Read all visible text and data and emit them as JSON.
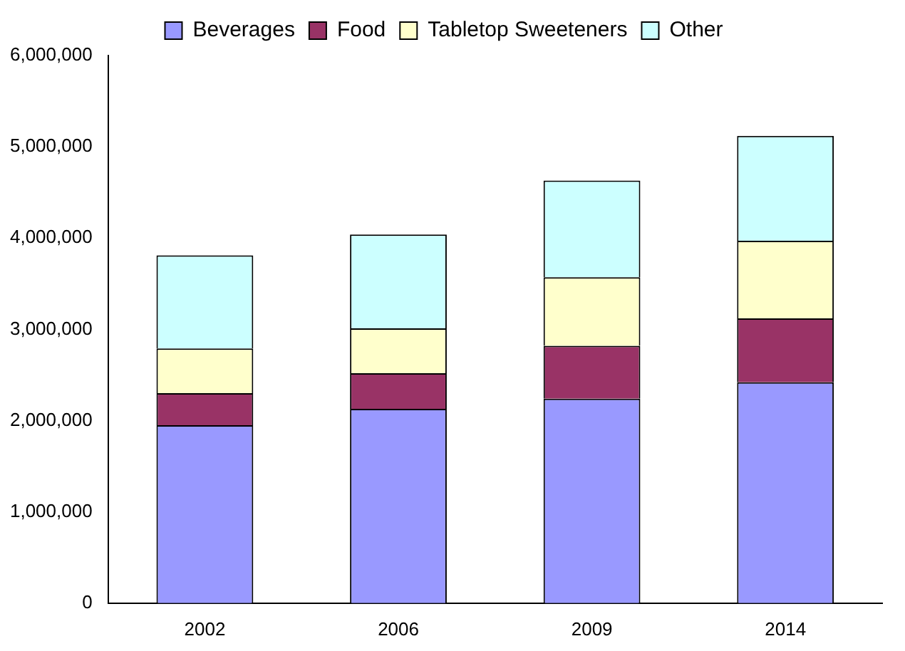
{
  "chart_data": {
    "type": "bar",
    "stacked": true,
    "categories": [
      "2002",
      "2006",
      "2009",
      "2014"
    ],
    "series": [
      {
        "name": "Beverages",
        "color": "#9999ff",
        "values": [
          1950000,
          2130000,
          2240000,
          2420000
        ]
      },
      {
        "name": "Food",
        "color": "#993366",
        "values": [
          350000,
          390000,
          580000,
          700000
        ]
      },
      {
        "name": "Tabletop Sweeteners",
        "color": "#ffffcc",
        "values": [
          490000,
          490000,
          750000,
          850000
        ]
      },
      {
        "name": "Other",
        "color": "#ccffff",
        "values": [
          1020000,
          1030000,
          1060000,
          1150000
        ]
      }
    ],
    "ylim": [
      0,
      6000000
    ],
    "yticks": [
      0,
      {
        "value": 1000000,
        "label": "1,000,000"
      },
      {
        "value": 2000000,
        "label": "2,000,000"
      },
      {
        "value": 3000000,
        "label": "3,000,000"
      },
      {
        "value": 4000000,
        "label": "4,000,000"
      },
      {
        "value": 5000000,
        "label": "5,000,000"
      },
      {
        "value": 6000000,
        "label": "6,000,000"
      }
    ],
    "grid": false,
    "legend": "top"
  }
}
